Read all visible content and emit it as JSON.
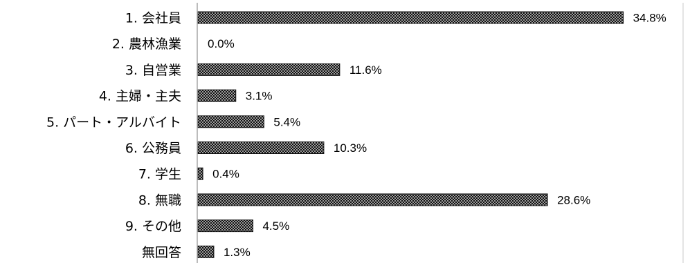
{
  "chart_data": {
    "type": "bar",
    "orientation": "horizontal",
    "categories": [
      "1. 会社員",
      "2. 農林漁業",
      "3. 自営業",
      "4. 主婦・主夫",
      "5. パート・アルバイト",
      "6. 公務員",
      "7. 学生",
      "8. 無職",
      "9. その他",
      "無回答"
    ],
    "values": [
      34.8,
      0.0,
      11.6,
      3.1,
      5.4,
      10.3,
      0.4,
      28.6,
      4.5,
      1.3
    ],
    "value_labels": [
      "34.8%",
      "0.0%",
      "11.6%",
      "3.1%",
      "5.4%",
      "10.3%",
      "0.4%",
      "28.6%",
      "4.5%",
      "1.3%"
    ],
    "title": "",
    "xlabel": "",
    "ylabel": "",
    "xlim": [
      0,
      40
    ],
    "grid": false,
    "legend": "none",
    "bar_fill": "dotted-black-pattern",
    "colors": {
      "bar": "#111111",
      "dot": "#ffffff",
      "axis": "#a6a6a6",
      "text": "#000000"
    }
  }
}
